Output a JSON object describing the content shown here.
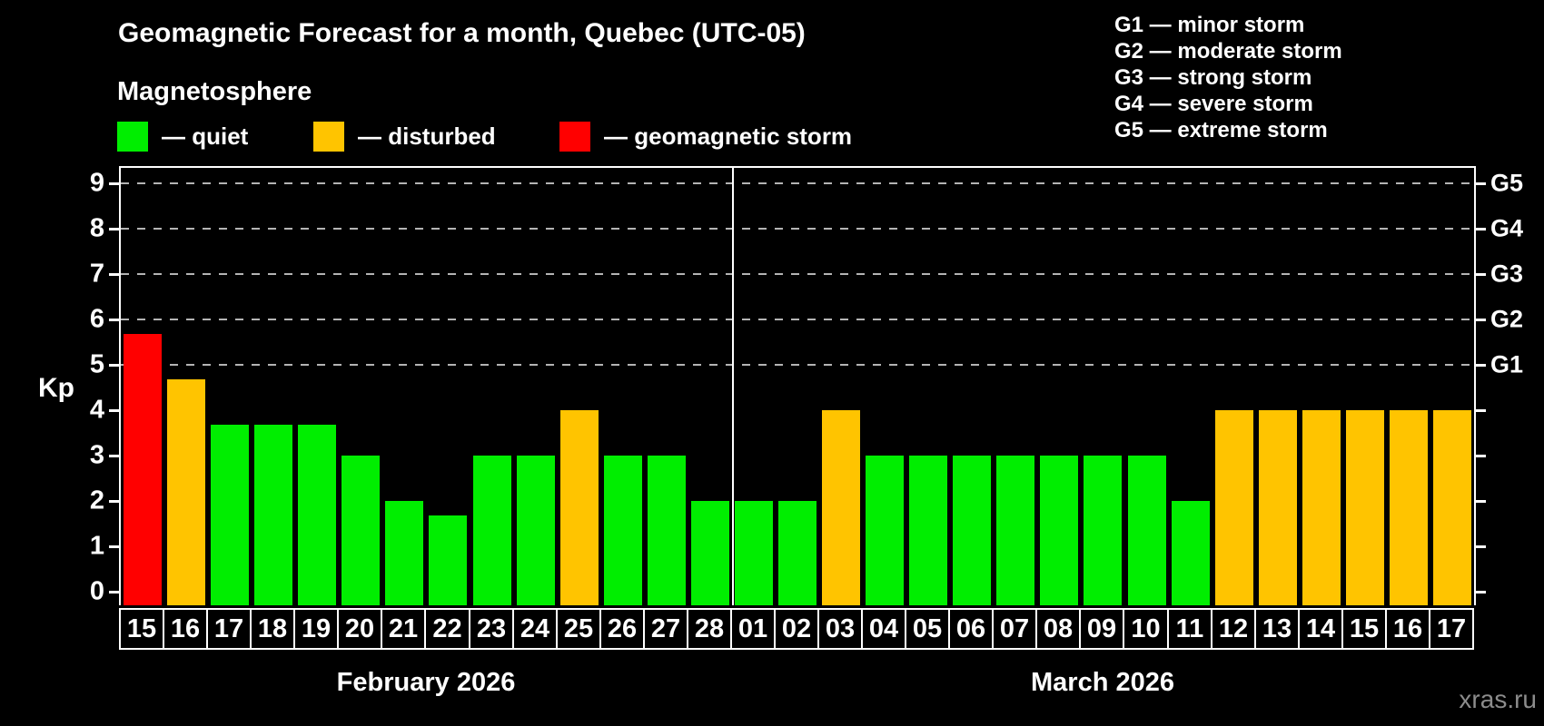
{
  "title": "Geomagnetic Forecast for a month, Quebec (UTC-05)",
  "subtitle": "Magnetosphere",
  "legend": {
    "items": [
      {
        "name": "quiet",
        "label": "— quiet",
        "color": "#00ee00"
      },
      {
        "name": "disturbed",
        "label": "— disturbed",
        "color": "#ffc400"
      },
      {
        "name": "storm",
        "label": "— geomagnetic storm",
        "color": "#ff0000"
      }
    ]
  },
  "g_scale_legend": [
    "G1 — minor storm",
    "G2 — moderate storm",
    "G3 — strong storm",
    "G4 — severe storm",
    "G5 — extreme storm"
  ],
  "watermark": "xras.ru",
  "chart_data": {
    "type": "bar",
    "ylabel": "Kp",
    "ylim": [
      0,
      9
    ],
    "yticks": [
      0,
      1,
      2,
      3,
      4,
      5,
      6,
      7,
      8,
      9
    ],
    "gridlines_at": [
      5,
      6,
      7,
      8,
      9
    ],
    "grid_style": "dashed horizontal lines at G-storm levels only",
    "right_axis": [
      {
        "kp": 5,
        "label": "G1"
      },
      {
        "kp": 6,
        "label": "G2"
      },
      {
        "kp": 7,
        "label": "G3"
      },
      {
        "kp": 8,
        "label": "G4"
      },
      {
        "kp": 9,
        "label": "G5"
      }
    ],
    "colors": {
      "quiet": "#00ee00",
      "disturbed": "#ffc400",
      "storm": "#ff0000"
    },
    "months": [
      {
        "label": "February 2026",
        "days": 14
      },
      {
        "label": "March 2026",
        "days": 17
      }
    ],
    "bars": [
      {
        "day": "15",
        "value": 5.67,
        "status": "storm"
      },
      {
        "day": "16",
        "value": 4.67,
        "status": "disturbed"
      },
      {
        "day": "17",
        "value": 3.67,
        "status": "quiet"
      },
      {
        "day": "18",
        "value": 3.67,
        "status": "quiet"
      },
      {
        "day": "19",
        "value": 3.67,
        "status": "quiet"
      },
      {
        "day": "20",
        "value": 3,
        "status": "quiet"
      },
      {
        "day": "21",
        "value": 2,
        "status": "quiet"
      },
      {
        "day": "22",
        "value": 1.67,
        "status": "quiet"
      },
      {
        "day": "23",
        "value": 3,
        "status": "quiet"
      },
      {
        "day": "24",
        "value": 3,
        "status": "quiet"
      },
      {
        "day": "25",
        "value": 4,
        "status": "disturbed"
      },
      {
        "day": "26",
        "value": 3,
        "status": "quiet"
      },
      {
        "day": "27",
        "value": 3,
        "status": "quiet"
      },
      {
        "day": "28",
        "value": 2,
        "status": "quiet"
      },
      {
        "day": "01",
        "value": 2,
        "status": "quiet"
      },
      {
        "day": "02",
        "value": 2,
        "status": "quiet"
      },
      {
        "day": "03",
        "value": 4,
        "status": "disturbed"
      },
      {
        "day": "04",
        "value": 3,
        "status": "quiet"
      },
      {
        "day": "05",
        "value": 3,
        "status": "quiet"
      },
      {
        "day": "06",
        "value": 3,
        "status": "quiet"
      },
      {
        "day": "07",
        "value": 3,
        "status": "quiet"
      },
      {
        "day": "08",
        "value": 3,
        "status": "quiet"
      },
      {
        "day": "09",
        "value": 3,
        "status": "quiet"
      },
      {
        "day": "10",
        "value": 3,
        "status": "quiet"
      },
      {
        "day": "11",
        "value": 2,
        "status": "quiet"
      },
      {
        "day": "12",
        "value": 4,
        "status": "disturbed"
      },
      {
        "day": "13",
        "value": 4,
        "status": "disturbed"
      },
      {
        "day": "14",
        "value": 4,
        "status": "disturbed"
      },
      {
        "day": "15",
        "value": 4,
        "status": "disturbed"
      },
      {
        "day": "16",
        "value": 4,
        "status": "disturbed"
      },
      {
        "day": "17",
        "value": 4,
        "status": "disturbed"
      }
    ]
  }
}
